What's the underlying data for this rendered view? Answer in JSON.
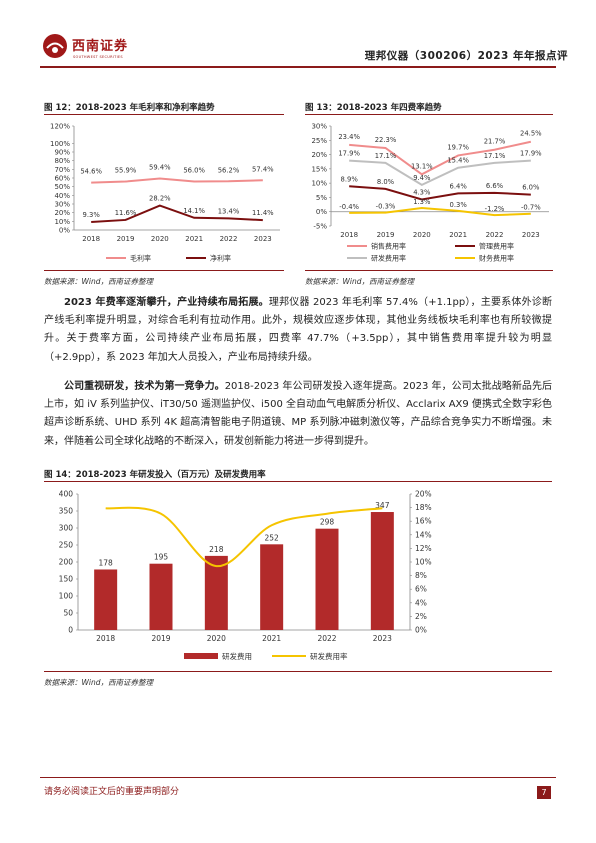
{
  "header": {
    "logo_cn": "西南证券",
    "logo_en": "SOUTHWEST SECURITIES",
    "report_title": "理邦仪器（300206）2023 年年报点评"
  },
  "colors": {
    "brand": "#8b1a1a",
    "light_red": "#f08c8c",
    "dark_red": "#7b0f0f",
    "gray": "#bfbfbf",
    "yellow": "#f5c400"
  },
  "fig12": {
    "title": "图 12：2018-2023 年毛利率和净利率趋势",
    "source": "数据来源：Wind，西南证券整理"
  },
  "fig13": {
    "title": "图 13：2018-2023 年四费率趋势",
    "source": "数据来源：Wind，西南证券整理"
  },
  "para1": {
    "bold": "2023 年费率逐渐攀升，产业持续布局拓展。",
    "text": "理邦仪器 2023 年毛利率 57.4%（+1.1pp），主要系体外诊断产线毛利率提升明显，对综合毛利有拉动作用。此外，规模效应逐步体现，其他业务线板块毛利率也有所较微提升。关于费率方面，公司持续产业布局拓展，四费率 47.7%（+3.5pp），其中销售费用率提升较为明显（+2.9pp），系 2023 年加大人员投入，产业布局持续升级。"
  },
  "para2": {
    "bold": "公司重视研发，技术为第一竞争力。",
    "text": "2018-2023 年公司研发投入逐年提高。2023 年，公司太批战略新品先后上市，如 iV 系列监护仪、iT30/50 遥测监护仪、i500 全自动血气电解质分析仪、Acclarix AX9 便携式全数字彩色超声诊断系统、UHD 系列 4K 超高清智能电子阴道镜、MP 系列脉冲磁刺激仪等，产品综合竞争实力不断增强。未来，伴随着公司全球化战略的不断深入，研发创新能力将进一步得到提升。"
  },
  "fig14": {
    "title": "图 14：2018-2023 年研发投入（百万元）及研发费用率",
    "source": "数据来源：Wind，西南证券整理"
  },
  "footer": {
    "notice": "请务必阅读正文后的重要声明部分",
    "page": "7"
  },
  "chart_data": [
    {
      "type": "line",
      "categories": [
        "2018",
        "2019",
        "2020",
        "2021",
        "2022",
        "2023"
      ],
      "series": [
        {
          "name": "毛利率",
          "values": [
            54.6,
            55.9,
            59.4,
            56.0,
            56.2,
            57.4
          ],
          "labels": [
            "54.6%",
            "55.9%",
            "59.4%",
            "56.0%",
            "56.2%",
            "57.4%"
          ],
          "color": "#f08c8c"
        },
        {
          "name": "净利率",
          "values": [
            9.3,
            11.6,
            28.2,
            14.1,
            13.4,
            11.4
          ],
          "labels": [
            "9.3%",
            "11.6%",
            "28.2%",
            "14.1%",
            "13.4%",
            "11.4%"
          ],
          "color": "#7b0f0f"
        }
      ],
      "yticks": [
        "0%",
        "10%",
        "20%",
        "30%",
        "40%",
        "50%",
        "60%",
        "70%",
        "80%",
        "90%",
        "100%",
        "120%"
      ],
      "ylim": [
        0,
        120
      ],
      "legend": "bottom"
    },
    {
      "type": "line",
      "categories": [
        "2018",
        "2019",
        "2020",
        "2021",
        "2022",
        "2023"
      ],
      "series": [
        {
          "name": "销售费用率",
          "values": [
            23.4,
            22.3,
            13.1,
            19.7,
            21.7,
            24.5
          ],
          "labels": [
            "23.4%",
            "22.3%",
            "13.1%",
            "19.7%",
            "21.7%",
            "24.5%"
          ],
          "color": "#f08c8c"
        },
        {
          "name": "管理费用率",
          "values": [
            8.9,
            8.0,
            4.3,
            6.4,
            6.6,
            6.0
          ],
          "labels": [
            "8.9%",
            "8.0%",
            "4.3%",
            "6.4%",
            "6.6%",
            "6.0%"
          ],
          "color": "#7b0f0f"
        },
        {
          "name": "研发费用率",
          "values": [
            17.9,
            17.1,
            9.4,
            15.4,
            17.1,
            17.9
          ],
          "labels": [
            "17.9%",
            "17.1%",
            "9.4%",
            "15.4%",
            "17.1%",
            "17.9%"
          ],
          "color": "#bfbfbf"
        },
        {
          "name": "财务费用率",
          "values": [
            -0.4,
            -0.3,
            1.3,
            0.3,
            -1.2,
            -0.7
          ],
          "labels": [
            "-0.4%",
            "-0.3%",
            "1.3%",
            "0.3%",
            "-1.2%",
            "-0.7%"
          ],
          "color": "#f5c400"
        }
      ],
      "yticks": [
        "-5%",
        "0%",
        "5%",
        "10%",
        "15%",
        "20%",
        "25%",
        "30%"
      ],
      "ylim": [
        -5,
        30
      ],
      "legend": "bottom"
    },
    {
      "type": "bar",
      "categories": [
        "2018",
        "2019",
        "2020",
        "2021",
        "2022",
        "2023"
      ],
      "series": [
        {
          "name": "研发费用",
          "values": [
            178,
            195,
            218,
            252,
            298,
            347
          ],
          "labels": [
            "178",
            "195",
            "218",
            "252",
            "298",
            "347"
          ],
          "color": "#b22a2a",
          "axis": "left"
        },
        {
          "name": "研发费用率",
          "values": [
            17.9,
            17.1,
            9.4,
            15.4,
            17.1,
            17.9
          ],
          "color": "#f5c400",
          "axis": "right",
          "type": "line"
        }
      ],
      "yticks_left": [
        "0",
        "50",
        "100",
        "150",
        "200",
        "250",
        "300",
        "350",
        "400"
      ],
      "yticks_right": [
        "0%",
        "2%",
        "4%",
        "6%",
        "8%",
        "10%",
        "12%",
        "14%",
        "16%",
        "18%",
        "20%"
      ],
      "ylim_left": [
        0,
        400
      ],
      "ylim_right": [
        0,
        20
      ],
      "legend": "bottom"
    }
  ]
}
